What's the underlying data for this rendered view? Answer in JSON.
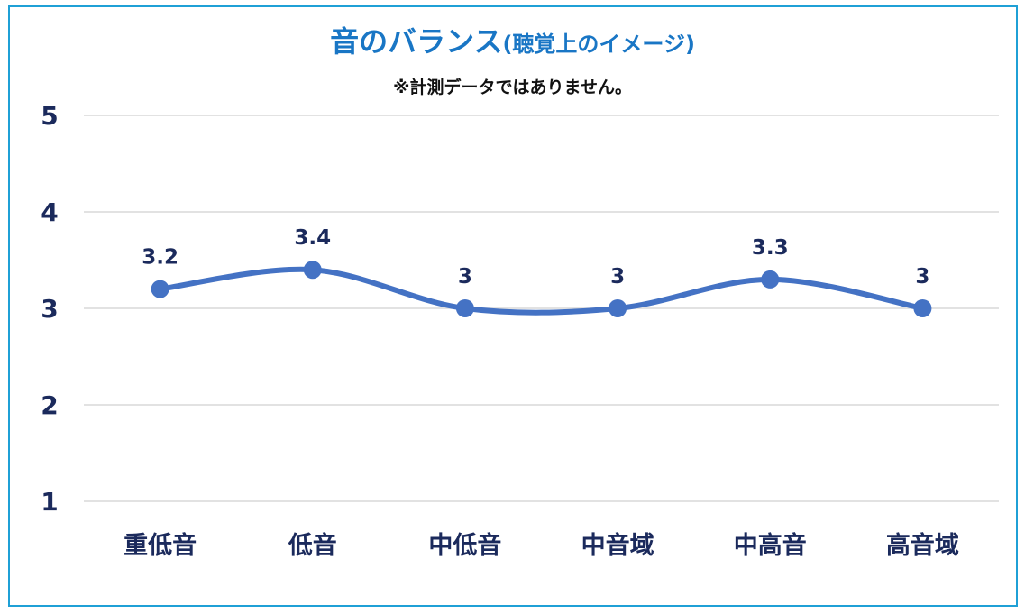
{
  "chart_data": {
    "type": "line",
    "title_main": "音のバランス",
    "title_paren": "(聴覚上のイメージ)",
    "subtitle": "※計測データではありません。",
    "categories": [
      "重低音",
      "低音",
      "中低音",
      "中音域",
      "中高音",
      "高音域"
    ],
    "series": [
      {
        "values": [
          3.2,
          3.4,
          3,
          3,
          3.3,
          3
        ]
      }
    ],
    "data_labels": [
      "3.2",
      "3.4",
      "3",
      "3",
      "3.3",
      "3"
    ],
    "yticks": [
      "1",
      "2",
      "3",
      "4",
      "5"
    ],
    "ylim": [
      1,
      5
    ],
    "smooth": true,
    "grid": true,
    "legend": "none",
    "line_color": "#4472c4",
    "grid_color": "#d9d9d9",
    "label_color": "#1b2a5c",
    "title_color": "#1976c5",
    "border_color": "#1fa0d6"
  }
}
